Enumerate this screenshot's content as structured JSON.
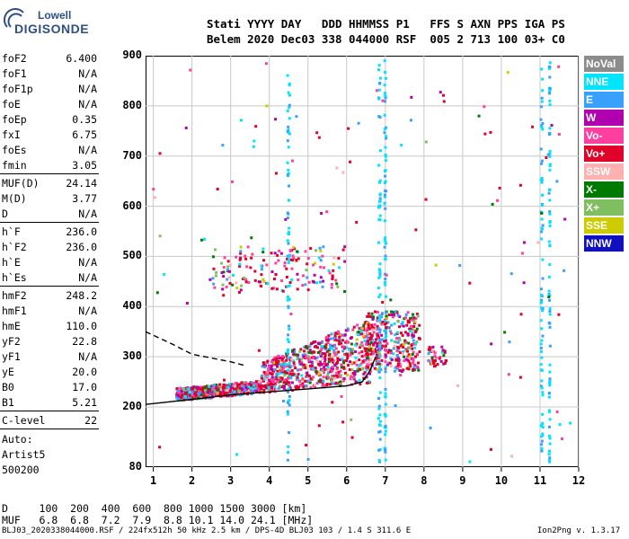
{
  "logo": {
    "line1": "Lowell",
    "line2": "DIGISONDE"
  },
  "header": {
    "row1": "Stati YYYY DAY   DDD HHMMSS P1   FFS S AXN PPS IGA PS",
    "row2": "Belem 2020 Dec03 338 044000 RSF  005 2 713 100 03+ C0"
  },
  "params": [
    {
      "k": "foF2",
      "v": "6.400"
    },
    {
      "k": "foF1",
      "v": "N/A"
    },
    {
      "k": "foF1p",
      "v": "N/A"
    },
    {
      "k": "foE",
      "v": "N/A"
    },
    {
      "k": "foEp",
      "v": "0.35"
    },
    {
      "k": "fxI",
      "v": "6.75"
    },
    {
      "k": "foEs",
      "v": "N/A"
    },
    {
      "k": "fmin",
      "v": "3.05"
    },
    {
      "k": "MUF(D)",
      "v": "24.14"
    },
    {
      "k": "M(D)",
      "v": "3.77"
    },
    {
      "k": "D",
      "v": "N/A"
    },
    {
      "k": "h`F",
      "v": "236.0"
    },
    {
      "k": "h`F2",
      "v": "236.0"
    },
    {
      "k": "h`E",
      "v": "N/A"
    },
    {
      "k": "h`Es",
      "v": "N/A"
    },
    {
      "k": "hmF2",
      "v": "248.2"
    },
    {
      "k": "hmF1",
      "v": "N/A"
    },
    {
      "k": "hmE",
      "v": "110.0"
    },
    {
      "k": "yF2",
      "v": "22.8"
    },
    {
      "k": "yF1",
      "v": "N/A"
    },
    {
      "k": "yE",
      "v": "20.0"
    },
    {
      "k": "B0",
      "v": "17.0"
    },
    {
      "k": "B1",
      "v": "5.21"
    },
    {
      "k": "C-level",
      "v": "22"
    }
  ],
  "auto": {
    "l1": "Auto:",
    "l2": "Artist5",
    "l3": "500200"
  },
  "legend": [
    {
      "label": "NoVal",
      "color": "#8c8c8c"
    },
    {
      "label": "NNE",
      "color": "#00e5ff"
    },
    {
      "label": "E",
      "color": "#3aa0ff"
    },
    {
      "label": "W",
      "color": "#b000b0"
    },
    {
      "label": "Vo-",
      "color": "#ff3fa0"
    },
    {
      "label": "Vo+",
      "color": "#e0002a"
    },
    {
      "label": "SSW",
      "color": "#ffb0b0"
    },
    {
      "label": "X-",
      "color": "#007a00"
    },
    {
      "label": "X+",
      "color": "#7fbf5f"
    },
    {
      "label": "SSE",
      "color": "#cccc00"
    },
    {
      "label": "NNW",
      "color": "#1010c0"
    }
  ],
  "chart_data": {
    "type": "scatter",
    "xlabel": "",
    "ylabel": "",
    "xlim": [
      0.8,
      12
    ],
    "ylim": [
      80,
      900
    ],
    "xticks": [
      "1",
      "2",
      "3",
      "4",
      "5",
      "6",
      "7",
      "8",
      "9",
      "10",
      "11",
      "12"
    ],
    "yticks": [
      "900",
      "800",
      "700",
      "600",
      "500",
      "400",
      "300",
      "200",
      "80"
    ],
    "ytick_values": [
      900,
      800,
      700,
      600,
      500,
      400,
      300,
      200,
      80
    ],
    "grid": true,
    "trace_solid": {
      "x": [
        0.8,
        2.0,
        3.0,
        4.0,
        5.0,
        6.0,
        6.4,
        6.6,
        6.75
      ],
      "y": [
        205,
        215,
        224,
        230,
        236,
        242,
        250,
        272,
        300
      ]
    },
    "trace_dashed": {
      "x": [
        0.8,
        1.5,
        2.0,
        3.0,
        3.4
      ],
      "y": [
        350,
        325,
        305,
        290,
        282
      ]
    }
  },
  "dist_table": {
    "row1": "D     100  200  400  600  800 1000 1500 3000 [km]",
    "row2": "MUF   6.8  6.8  7.2  7.9  8.8 10.1 14.0 24.1 [MHz]"
  },
  "footer": {
    "left": "BLJ03_2020338044000.RSF / 224fx512h 50 kHz 2.5 km / DPS-4D BLJ03 103 / 1.4 S 311.6 E",
    "right": "Ion2Png v. 1.3.17"
  }
}
